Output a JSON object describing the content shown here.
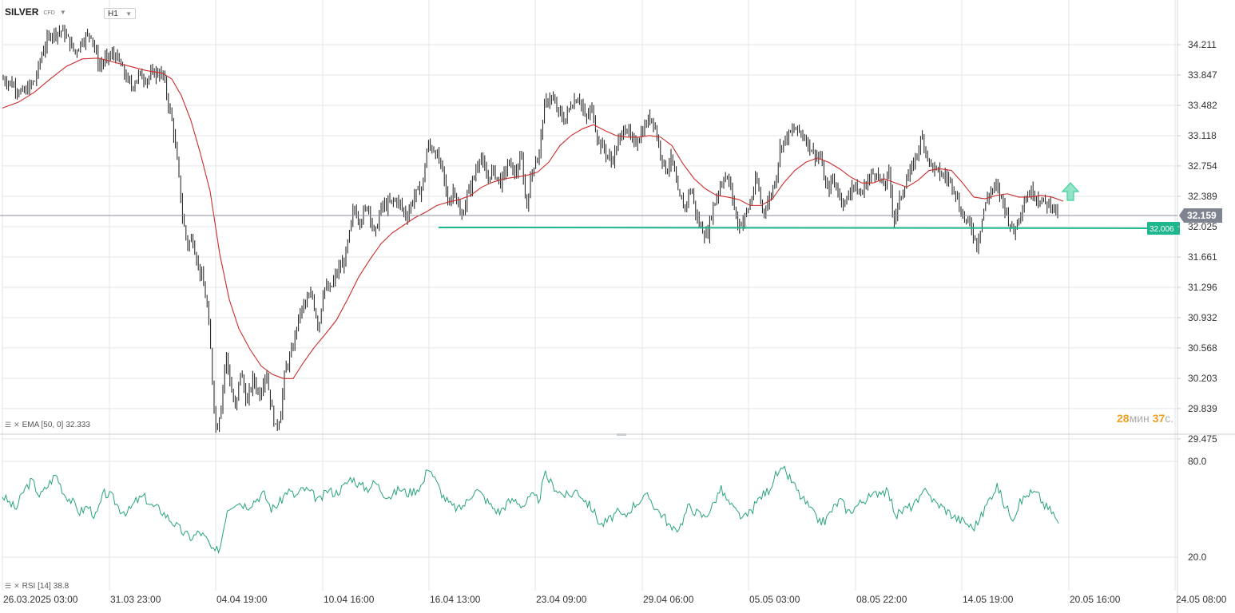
{
  "header": {
    "symbol": "SILVER",
    "symbol_type": "CFD",
    "timeframe": "H1"
  },
  "indicators": {
    "ema_label": "EMA [50, 0]",
    "ema_value": "32.333",
    "rsi_label": "RSI [14]",
    "rsi_value": "38.8"
  },
  "countdown": {
    "minutes": "28",
    "minutes_unit": "мин",
    "seconds": "37",
    "seconds_unit": "с."
  },
  "price_axis_labels": [
    "34.211",
    "33.847",
    "33.482",
    "33.118",
    "32.754",
    "32.389",
    "32.025",
    "31.661",
    "31.296",
    "30.932",
    "30.568",
    "30.203",
    "29.839",
    "29.475"
  ],
  "rsi_axis_labels": [
    "80.0",
    "20.0"
  ],
  "time_axis_labels": [
    "26.03.2025  03:00",
    "31.03  23:00",
    "04.04  19:00",
    "10.04  16:00",
    "16.04  13:00",
    "23.04  09:00",
    "29.04  06:00",
    "05.05  03:00",
    "08.05  22:00",
    "14.05  19:00",
    "20.05  16:00",
    "24.05  08:00"
  ],
  "colors": {
    "candle": "#1a1a1a",
    "ema": "#cc2b2b",
    "rsi": "#26a47a",
    "support": "#1fb88e",
    "arrow": "#3ecf9a",
    "current_price_bg": "#7f8590",
    "grid": "#e3e5e8"
  },
  "chart_data": {
    "type": "candlestick",
    "instrument": "SILVER",
    "timeframe": "H1",
    "y_range": [
      29.3,
      34.45
    ],
    "current_price": 32.159,
    "support_level": 32.006,
    "ema_period": 50,
    "ema_last": 32.333,
    "rsi_period": 14,
    "rsi_last": 38.8,
    "rsi_range": [
      5,
      95
    ],
    "price_path": [
      [
        0,
        33.82
      ],
      [
        15,
        33.75
      ],
      [
        30,
        33.62
      ],
      [
        45,
        33.78
      ],
      [
        55,
        34.15
      ],
      [
        65,
        34.35
      ],
      [
        80,
        34.38
      ],
      [
        95,
        34.12
      ],
      [
        105,
        34.28
      ],
      [
        115,
        34.35
      ],
      [
        125,
        33.95
      ],
      [
        135,
        34.05
      ],
      [
        145,
        34.1
      ],
      [
        155,
        33.9
      ],
      [
        165,
        33.7
      ],
      [
        175,
        33.85
      ],
      [
        185,
        33.8
      ],
      [
        195,
        33.88
      ],
      [
        205,
        33.85
      ],
      [
        212,
        33.5
      ],
      [
        218,
        33.2
      ],
      [
        224,
        32.7
      ],
      [
        230,
        32.1
      ],
      [
        236,
        31.8
      ],
      [
        242,
        31.9
      ],
      [
        248,
        31.6
      ],
      [
        254,
        31.4
      ],
      [
        260,
        31.1
      ],
      [
        265,
        30.5
      ],
      [
        268,
        30.0
      ],
      [
        272,
        29.55
      ],
      [
        278,
        29.9
      ],
      [
        284,
        30.5
      ],
      [
        290,
        30.1
      ],
      [
        296,
        29.8
      ],
      [
        302,
        30.3
      ],
      [
        310,
        29.9
      ],
      [
        318,
        30.2
      ],
      [
        326,
        30.0
      ],
      [
        334,
        30.3
      ],
      [
        340,
        29.9
      ],
      [
        346,
        29.6
      ],
      [
        352,
        29.75
      ],
      [
        358,
        30.3
      ],
      [
        366,
        30.5
      ],
      [
        374,
        30.9
      ],
      [
        382,
        31.1
      ],
      [
        392,
        31.2
      ],
      [
        400,
        30.8
      ],
      [
        406,
        31.3
      ],
      [
        414,
        31.25
      ],
      [
        424,
        31.5
      ],
      [
        432,
        31.6
      ],
      [
        438,
        31.9
      ],
      [
        444,
        32.25
      ],
      [
        452,
        32.1
      ],
      [
        462,
        32.3
      ],
      [
        470,
        31.9
      ],
      [
        478,
        32.25
      ],
      [
        488,
        32.3
      ],
      [
        498,
        32.35
      ],
      [
        510,
        32.15
      ],
      [
        520,
        32.4
      ],
      [
        530,
        32.5
      ],
      [
        536,
        33.0
      ],
      [
        545,
        32.95
      ],
      [
        555,
        32.7
      ],
      [
        562,
        32.3
      ],
      [
        570,
        32.5
      ],
      [
        578,
        32.1
      ],
      [
        586,
        32.4
      ],
      [
        594,
        32.6
      ],
      [
        602,
        32.9
      ],
      [
        610,
        32.6
      ],
      [
        618,
        32.7
      ],
      [
        628,
        32.55
      ],
      [
        638,
        32.8
      ],
      [
        646,
        32.65
      ],
      [
        654,
        32.85
      ],
      [
        660,
        32.25
      ],
      [
        668,
        32.75
      ],
      [
        676,
        32.9
      ],
      [
        682,
        33.45
      ],
      [
        690,
        33.6
      ],
      [
        700,
        33.4
      ],
      [
        708,
        33.3
      ],
      [
        716,
        33.5
      ],
      [
        726,
        33.6
      ],
      [
        734,
        33.3
      ],
      [
        742,
        33.45
      ],
      [
        750,
        33.05
      ],
      [
        758,
        32.95
      ],
      [
        766,
        32.8
      ],
      [
        774,
        33.0
      ],
      [
        784,
        33.25
      ],
      [
        794,
        33.0
      ],
      [
        804,
        33.15
      ],
      [
        812,
        33.3
      ],
      [
        818,
        33.35
      ],
      [
        826,
        33.0
      ],
      [
        834,
        32.7
      ],
      [
        842,
        32.85
      ],
      [
        850,
        32.4
      ],
      [
        858,
        32.25
      ],
      [
        866,
        32.5
      ],
      [
        874,
        32.1
      ],
      [
        880,
        32.0
      ],
      [
        886,
        31.9
      ],
      [
        892,
        32.2
      ],
      [
        900,
        32.45
      ],
      [
        908,
        32.65
      ],
      [
        916,
        32.5
      ],
      [
        924,
        32.05
      ],
      [
        932,
        32.1
      ],
      [
        940,
        32.3
      ],
      [
        948,
        32.6
      ],
      [
        956,
        32.2
      ],
      [
        964,
        32.35
      ],
      [
        972,
        32.6
      ],
      [
        978,
        33.0
      ],
      [
        986,
        33.1
      ],
      [
        996,
        33.2
      ],
      [
        1004,
        33.15
      ],
      [
        1012,
        33.05
      ],
      [
        1020,
        32.9
      ],
      [
        1028,
        32.85
      ],
      [
        1036,
        32.45
      ],
      [
        1044,
        32.6
      ],
      [
        1052,
        32.4
      ],
      [
        1060,
        32.3
      ],
      [
        1068,
        32.55
      ],
      [
        1078,
        32.4
      ],
      [
        1088,
        32.6
      ],
      [
        1098,
        32.7
      ],
      [
        1106,
        32.5
      ],
      [
        1114,
        32.65
      ],
      [
        1120,
        32.1
      ],
      [
        1126,
        32.3
      ],
      [
        1134,
        32.55
      ],
      [
        1142,
        32.7
      ],
      [
        1150,
        32.95
      ],
      [
        1156,
        33.1
      ],
      [
        1164,
        32.8
      ],
      [
        1172,
        32.7
      ],
      [
        1180,
        32.65
      ],
      [
        1188,
        32.6
      ],
      [
        1196,
        32.5
      ],
      [
        1202,
        32.25
      ],
      [
        1210,
        32.1
      ],
      [
        1218,
        32.0
      ],
      [
        1224,
        31.8
      ],
      [
        1232,
        32.2
      ],
      [
        1240,
        32.45
      ],
      [
        1248,
        32.5
      ],
      [
        1256,
        32.35
      ],
      [
        1264,
        32.1
      ],
      [
        1270,
        31.95
      ],
      [
        1278,
        32.2
      ],
      [
        1286,
        32.4
      ],
      [
        1294,
        32.45
      ],
      [
        1302,
        32.35
      ],
      [
        1310,
        32.3
      ],
      [
        1318,
        32.3
      ],
      [
        1326,
        32.16
      ]
    ],
    "ema_path": [
      [
        0,
        33.45
      ],
      [
        20,
        33.52
      ],
      [
        40,
        33.64
      ],
      [
        60,
        33.8
      ],
      [
        80,
        33.95
      ],
      [
        100,
        34.04
      ],
      [
        120,
        34.05
      ],
      [
        140,
        34.0
      ],
      [
        160,
        33.95
      ],
      [
        180,
        33.9
      ],
      [
        200,
        33.87
      ],
      [
        212,
        33.8
      ],
      [
        224,
        33.6
      ],
      [
        236,
        33.3
      ],
      [
        248,
        32.9
      ],
      [
        260,
        32.45
      ],
      [
        272,
        31.7
      ],
      [
        284,
        31.15
      ],
      [
        296,
        30.8
      ],
      [
        310,
        30.55
      ],
      [
        324,
        30.35
      ],
      [
        338,
        30.25
      ],
      [
        352,
        30.2
      ],
      [
        364,
        30.2
      ],
      [
        376,
        30.38
      ],
      [
        390,
        30.57
      ],
      [
        404,
        30.73
      ],
      [
        418,
        30.9
      ],
      [
        432,
        31.15
      ],
      [
        446,
        31.42
      ],
      [
        460,
        31.63
      ],
      [
        474,
        31.82
      ],
      [
        488,
        31.95
      ],
      [
        502,
        32.04
      ],
      [
        516,
        32.13
      ],
      [
        530,
        32.2
      ],
      [
        544,
        32.28
      ],
      [
        558,
        32.32
      ],
      [
        572,
        32.35
      ],
      [
        586,
        32.4
      ],
      [
        600,
        32.5
      ],
      [
        614,
        32.56
      ],
      [
        628,
        32.6
      ],
      [
        642,
        32.62
      ],
      [
        656,
        32.64
      ],
      [
        670,
        32.68
      ],
      [
        684,
        32.8
      ],
      [
        698,
        33.0
      ],
      [
        712,
        33.12
      ],
      [
        726,
        33.2
      ],
      [
        740,
        33.25
      ],
      [
        754,
        33.18
      ],
      [
        768,
        33.12
      ],
      [
        782,
        33.1
      ],
      [
        796,
        33.1
      ],
      [
        810,
        33.12
      ],
      [
        824,
        33.1
      ],
      [
        838,
        33.0
      ],
      [
        852,
        32.78
      ],
      [
        866,
        32.6
      ],
      [
        880,
        32.48
      ],
      [
        894,
        32.4
      ],
      [
        908,
        32.38
      ],
      [
        922,
        32.35
      ],
      [
        936,
        32.28
      ],
      [
        950,
        32.28
      ],
      [
        964,
        32.36
      ],
      [
        978,
        32.55
      ],
      [
        992,
        32.7
      ],
      [
        1006,
        32.8
      ],
      [
        1020,
        32.85
      ],
      [
        1034,
        32.8
      ],
      [
        1048,
        32.72
      ],
      [
        1062,
        32.62
      ],
      [
        1076,
        32.55
      ],
      [
        1090,
        32.55
      ],
      [
        1104,
        32.6
      ],
      [
        1118,
        32.55
      ],
      [
        1132,
        32.5
      ],
      [
        1146,
        32.58
      ],
      [
        1160,
        32.7
      ],
      [
        1174,
        32.72
      ],
      [
        1188,
        32.7
      ],
      [
        1202,
        32.55
      ],
      [
        1216,
        32.38
      ],
      [
        1230,
        32.36
      ],
      [
        1244,
        32.4
      ],
      [
        1258,
        32.42
      ],
      [
        1272,
        32.38
      ],
      [
        1286,
        32.38
      ],
      [
        1300,
        32.4
      ],
      [
        1314,
        32.38
      ],
      [
        1328,
        32.33
      ]
    ],
    "rsi_path": [
      [
        0,
        60
      ],
      [
        10,
        55
      ],
      [
        20,
        50
      ],
      [
        30,
        62
      ],
      [
        40,
        68
      ],
      [
        50,
        58
      ],
      [
        60,
        65
      ],
      [
        70,
        72
      ],
      [
        80,
        60
      ],
      [
        90,
        55
      ],
      [
        100,
        48
      ],
      [
        110,
        52
      ],
      [
        120,
        45
      ],
      [
        130,
        60
      ],
      [
        140,
        58
      ],
      [
        150,
        50
      ],
      [
        160,
        48
      ],
      [
        170,
        55
      ],
      [
        180,
        58
      ],
      [
        190,
        52
      ],
      [
        200,
        50
      ],
      [
        210,
        45
      ],
      [
        220,
        40
      ],
      [
        230,
        35
      ],
      [
        240,
        32
      ],
      [
        250,
        36
      ],
      [
        260,
        30
      ],
      [
        268,
        22
      ],
      [
        276,
        27
      ],
      [
        284,
        50
      ],
      [
        296,
        55
      ],
      [
        310,
        52
      ],
      [
        320,
        56
      ],
      [
        330,
        60
      ],
      [
        340,
        50
      ],
      [
        350,
        54
      ],
      [
        360,
        62
      ],
      [
        370,
        58
      ],
      [
        380,
        63
      ],
      [
        390,
        60
      ],
      [
        400,
        55
      ],
      [
        410,
        62
      ],
      [
        420,
        60
      ],
      [
        430,
        64
      ],
      [
        440,
        70
      ],
      [
        450,
        65
      ],
      [
        460,
        63
      ],
      [
        470,
        67
      ],
      [
        480,
        60
      ],
      [
        490,
        58
      ],
      [
        500,
        63
      ],
      [
        510,
        60
      ],
      [
        520,
        62
      ],
      [
        530,
        66
      ],
      [
        536,
        78
      ],
      [
        545,
        68
      ],
      [
        555,
        58
      ],
      [
        565,
        52
      ],
      [
        575,
        50
      ],
      [
        585,
        55
      ],
      [
        595,
        63
      ],
      [
        605,
        58
      ],
      [
        615,
        52
      ],
      [
        625,
        48
      ],
      [
        635,
        54
      ],
      [
        645,
        56
      ],
      [
        655,
        52
      ],
      [
        665,
        58
      ],
      [
        675,
        56
      ],
      [
        682,
        72
      ],
      [
        692,
        65
      ],
      [
        702,
        60
      ],
      [
        712,
        58
      ],
      [
        722,
        62
      ],
      [
        732,
        56
      ],
      [
        742,
        50
      ],
      [
        752,
        40
      ],
      [
        762,
        43
      ],
      [
        772,
        48
      ],
      [
        782,
        45
      ],
      [
        792,
        52
      ],
      [
        802,
        56
      ],
      [
        812,
        58
      ],
      [
        822,
        50
      ],
      [
        832,
        45
      ],
      [
        842,
        36
      ],
      [
        852,
        40
      ],
      [
        862,
        52
      ],
      [
        872,
        48
      ],
      [
        882,
        45
      ],
      [
        892,
        52
      ],
      [
        902,
        63
      ],
      [
        912,
        54
      ],
      [
        922,
        48
      ],
      [
        932,
        44
      ],
      [
        942,
        50
      ],
      [
        952,
        58
      ],
      [
        962,
        62
      ],
      [
        972,
        72
      ],
      [
        982,
        74
      ],
      [
        992,
        67
      ],
      [
        1002,
        58
      ],
      [
        1012,
        52
      ],
      [
        1022,
        44
      ],
      [
        1032,
        42
      ],
      [
        1042,
        50
      ],
      [
        1052,
        56
      ],
      [
        1062,
        48
      ],
      [
        1072,
        52
      ],
      [
        1082,
        56
      ],
      [
        1092,
        58
      ],
      [
        1102,
        62
      ],
      [
        1112,
        60
      ],
      [
        1122,
        46
      ],
      [
        1132,
        50
      ],
      [
        1142,
        52
      ],
      [
        1152,
        56
      ],
      [
        1160,
        64
      ],
      [
        1168,
        55
      ],
      [
        1178,
        52
      ],
      [
        1188,
        48
      ],
      [
        1198,
        44
      ],
      [
        1208,
        42
      ],
      [
        1218,
        38
      ],
      [
        1228,
        45
      ],
      [
        1238,
        56
      ],
      [
        1248,
        65
      ],
      [
        1258,
        52
      ],
      [
        1268,
        45
      ],
      [
        1278,
        55
      ],
      [
        1288,
        60
      ],
      [
        1298,
        60
      ],
      [
        1308,
        52
      ],
      [
        1318,
        48
      ],
      [
        1326,
        39
      ]
    ]
  }
}
